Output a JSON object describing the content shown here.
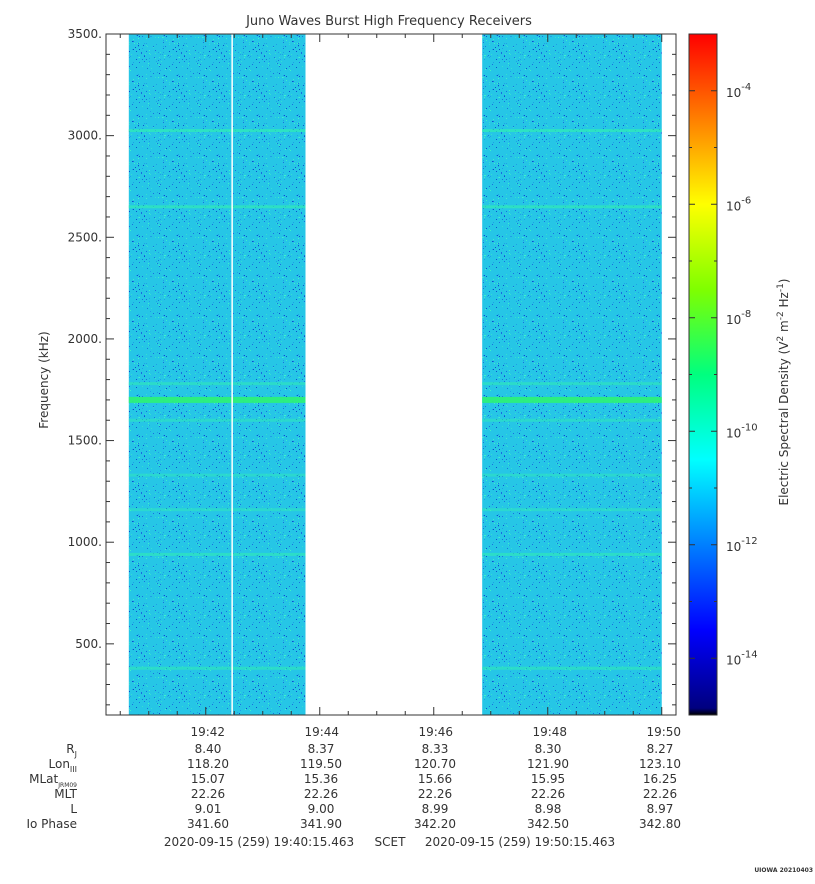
{
  "chart_data": {
    "type": "heatmap",
    "title": "Juno Waves Burst High Frequency Receivers",
    "ylabel": "Frequency (kHz)",
    "ylim": [
      150,
      3500
    ],
    "yticks": [
      {
        "value": 500,
        "label": "500."
      },
      {
        "value": 1000,
        "label": "1000."
      },
      {
        "value": 1500,
        "label": "1500."
      },
      {
        "value": 2000,
        "label": "2000."
      },
      {
        "value": 2500,
        "label": "2500."
      },
      {
        "value": 3000,
        "label": "3000."
      },
      {
        "value": 3500,
        "label": "3500."
      }
    ],
    "xlim_minutes": [
      0,
      10
    ],
    "xticks": [
      {
        "minutes": 1.75,
        "label": "19:42"
      },
      {
        "minutes": 3.75,
        "label": "19:44"
      },
      {
        "minutes": 5.75,
        "label": "19:46"
      },
      {
        "minutes": 7.75,
        "label": "19:48"
      },
      {
        "minutes": 9.75,
        "label": "19:50"
      }
    ],
    "data_segments_minutes": [
      [
        0.4,
        3.5
      ],
      [
        6.6,
        9.75
      ]
    ],
    "white_gap_minute": 2.2,
    "frequency_bands_khz": [
      {
        "freq": 3025,
        "strength": 0.6
      },
      {
        "freq": 2650,
        "strength": 0.55
      },
      {
        "freq": 1700,
        "strength": 1.0
      },
      {
        "freq": 1780,
        "strength": 0.35
      },
      {
        "freq": 1600,
        "strength": 0.25
      },
      {
        "freq": 940,
        "strength": 0.45
      },
      {
        "freq": 380,
        "strength": 0.4
      },
      {
        "freq": 1330,
        "strength": 0.2
      },
      {
        "freq": 1160,
        "strength": 0.2
      }
    ],
    "colorbar": {
      "label": "Electric Spectral Density (V² m⁻² Hz⁻¹)",
      "label_parts": {
        "base": "Electric Spectral Density (V",
        "sup1": "2",
        "mid1": " m",
        "sup2": "-2",
        "mid2": " Hz",
        "sup3": "-1",
        "end": ")"
      },
      "range_log10": [
        -15,
        -3
      ],
      "scale": "log",
      "ticks": [
        {
          "exp": -4,
          "base": "10",
          "sup": "-4"
        },
        {
          "exp": -6,
          "base": "10",
          "sup": "-6"
        },
        {
          "exp": -8,
          "base": "10",
          "sup": "-8"
        },
        {
          "exp": -10,
          "base": "10",
          "sup": "-10"
        },
        {
          "exp": -12,
          "base": "10",
          "sup": "-12"
        },
        {
          "exp": -14,
          "base": "10",
          "sup": "-14"
        }
      ]
    },
    "ephemeris": {
      "rows": [
        {
          "label": "R",
          "sub": "J",
          "values": [
            "8.40",
            "8.37",
            "8.33",
            "8.30",
            "8.27"
          ]
        },
        {
          "label": "Lon",
          "sub": "III",
          "values": [
            "118.20",
            "119.50",
            "120.70",
            "121.90",
            "123.10"
          ]
        },
        {
          "label": "MLat",
          "sub": "JRM09",
          "values": [
            "15.07",
            "15.36",
            "15.66",
            "15.95",
            "16.25"
          ]
        },
        {
          "label": "MLT",
          "sub": "",
          "values": [
            "22.26",
            "22.26",
            "22.26",
            "22.26",
            "22.26"
          ]
        },
        {
          "label": "L",
          "sub": "",
          "values": [
            "9.01",
            "9.00",
            "8.99",
            "8.98",
            "8.97"
          ]
        },
        {
          "label": "Io Phase",
          "sub": "",
          "values": [
            "341.60",
            "341.90",
            "342.20",
            "342.50",
            "342.80"
          ]
        }
      ]
    },
    "time_range": {
      "start": "2020-09-15 (259) 19:40:15.463",
      "mid": "SCET",
      "end": "2020-09-15 (259) 19:50:15.463"
    },
    "footer": "UIOWA 20210403"
  }
}
